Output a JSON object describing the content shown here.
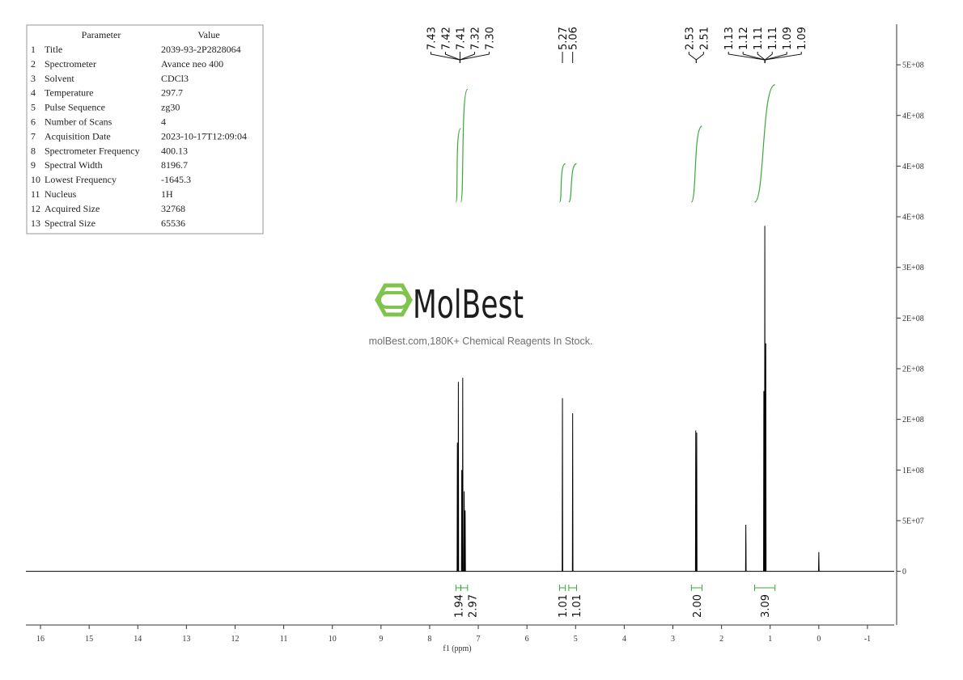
{
  "parameters": {
    "header": [
      "Parameter",
      "Value"
    ],
    "rows": [
      [
        "1",
        "Title",
        "2039-93-2P2828064"
      ],
      [
        "2",
        "Spectrometer",
        "Avance neo 400"
      ],
      [
        "3",
        "Solvent",
        "CDCl3"
      ],
      [
        "4",
        "Temperature",
        "297.7"
      ],
      [
        "5",
        "Pulse Sequence",
        "zg30"
      ],
      [
        "6",
        "Number of Scans",
        "4"
      ],
      [
        "7",
        "Acquisition Date",
        "2023-10-17T12:09:04"
      ],
      [
        "8",
        "Spectrometer Frequency",
        "400.13"
      ],
      [
        "9",
        "Spectral Width",
        "8196.7"
      ],
      [
        "10",
        "Lowest Frequency",
        "-1645.3"
      ],
      [
        "11",
        "Nucleus",
        "1H"
      ],
      [
        "12",
        "Acquired Size",
        "32768"
      ],
      [
        "13",
        "Spectral Size",
        "65536"
      ]
    ]
  },
  "watermark": {
    "brand": "MolBest",
    "tagline": "molBest.com,180K+ Chemical Reagents In Stock."
  },
  "chart_data": {
    "type": "line",
    "x_label": "f1 (ppm)",
    "xlim": [
      16.3,
      -1.55
    ],
    "xticks": [
      16,
      15,
      14,
      13,
      12,
      11,
      10,
      9,
      8,
      7,
      6,
      5,
      4,
      3,
      2,
      1,
      0,
      -1
    ],
    "ylim": [
      -53000000,
      540000000
    ],
    "yticks": [
      0,
      {
        "value": 50000000,
        "label": "5E+07"
      },
      {
        "value": 100000000,
        "label": "1E+08"
      },
      {
        "value": 150000000,
        "label": "2E+08"
      },
      {
        "value": 200000000,
        "label": "2E+08"
      },
      {
        "value": 250000000,
        "label": "2E+08"
      },
      {
        "value": 300000000,
        "label": "3E+08"
      },
      {
        "value": 350000000,
        "label": "4E+08"
      },
      {
        "value": 400000000,
        "label": "4E+08"
      },
      {
        "value": 450000000,
        "label": "4E+08"
      },
      {
        "value": 500000000,
        "label": "5E+08"
      }
    ],
    "series": [
      {
        "color": "#000000",
        "x": [
          16.3,
          7.436,
          7.43,
          7.424,
          7.416,
          7.41,
          7.404,
          7.346,
          7.34,
          7.334,
          7.326,
          7.32,
          7.314,
          7.296,
          7.29,
          7.284,
          7.276,
          7.27,
          7.264,
          5.276,
          5.27,
          5.264,
          5.066,
          5.06,
          5.054,
          2.536,
          2.53,
          2.524,
          2.516,
          2.51,
          2.504,
          1.506,
          1.5,
          1.494,
          1.136,
          1.13,
          1.124,
          1.116,
          1.11,
          1.104,
          1.096,
          1.09,
          1.084,
          0.006,
          0,
          -0.006,
          -1.55
        ],
        "values": [
          0,
          0,
          127000000,
          0,
          0,
          187000000,
          0,
          0,
          100000000,
          0,
          0,
          191000000,
          0,
          0,
          79000000,
          0,
          0,
          60000000,
          0,
          0,
          171000000,
          0,
          0,
          156000000,
          0,
          0,
          139000000,
          0,
          0,
          137000000,
          0,
          0,
          46000000,
          0,
          0,
          178000000,
          0,
          0,
          341000000,
          0,
          0,
          225000000,
          0,
          0,
          19000000,
          0,
          0
        ]
      }
    ],
    "peak_groups": [
      [
        7.43,
        7.42,
        7.41,
        7.32,
        {
          "value": 7.3,
          "label": "7.30"
        }
      ],
      [
        5.27
      ],
      [
        5.06
      ],
      [
        2.53,
        2.51
      ],
      [
        1.13,
        1.12,
        1.11,
        1.11,
        1.09,
        1.09
      ]
    ],
    "integrals": {
      "color": "#3aa935",
      "ranges": [
        [
          7.46,
          7.36
        ],
        [
          7.36,
          7.22
        ],
        [
          5.33,
          5.21
        ],
        [
          5.14,
          4.98
        ],
        [
          2.62,
          2.4
        ],
        [
          1.32,
          0.9
        ]
      ],
      "values": [
        1.94,
        2.97,
        1.01,
        1.01,
        2,
        3.09
      ],
      "value_labels": [
        "1.94",
        "2.97",
        "1.01",
        "1.01",
        "2.00",
        "3.09"
      ]
    }
  }
}
